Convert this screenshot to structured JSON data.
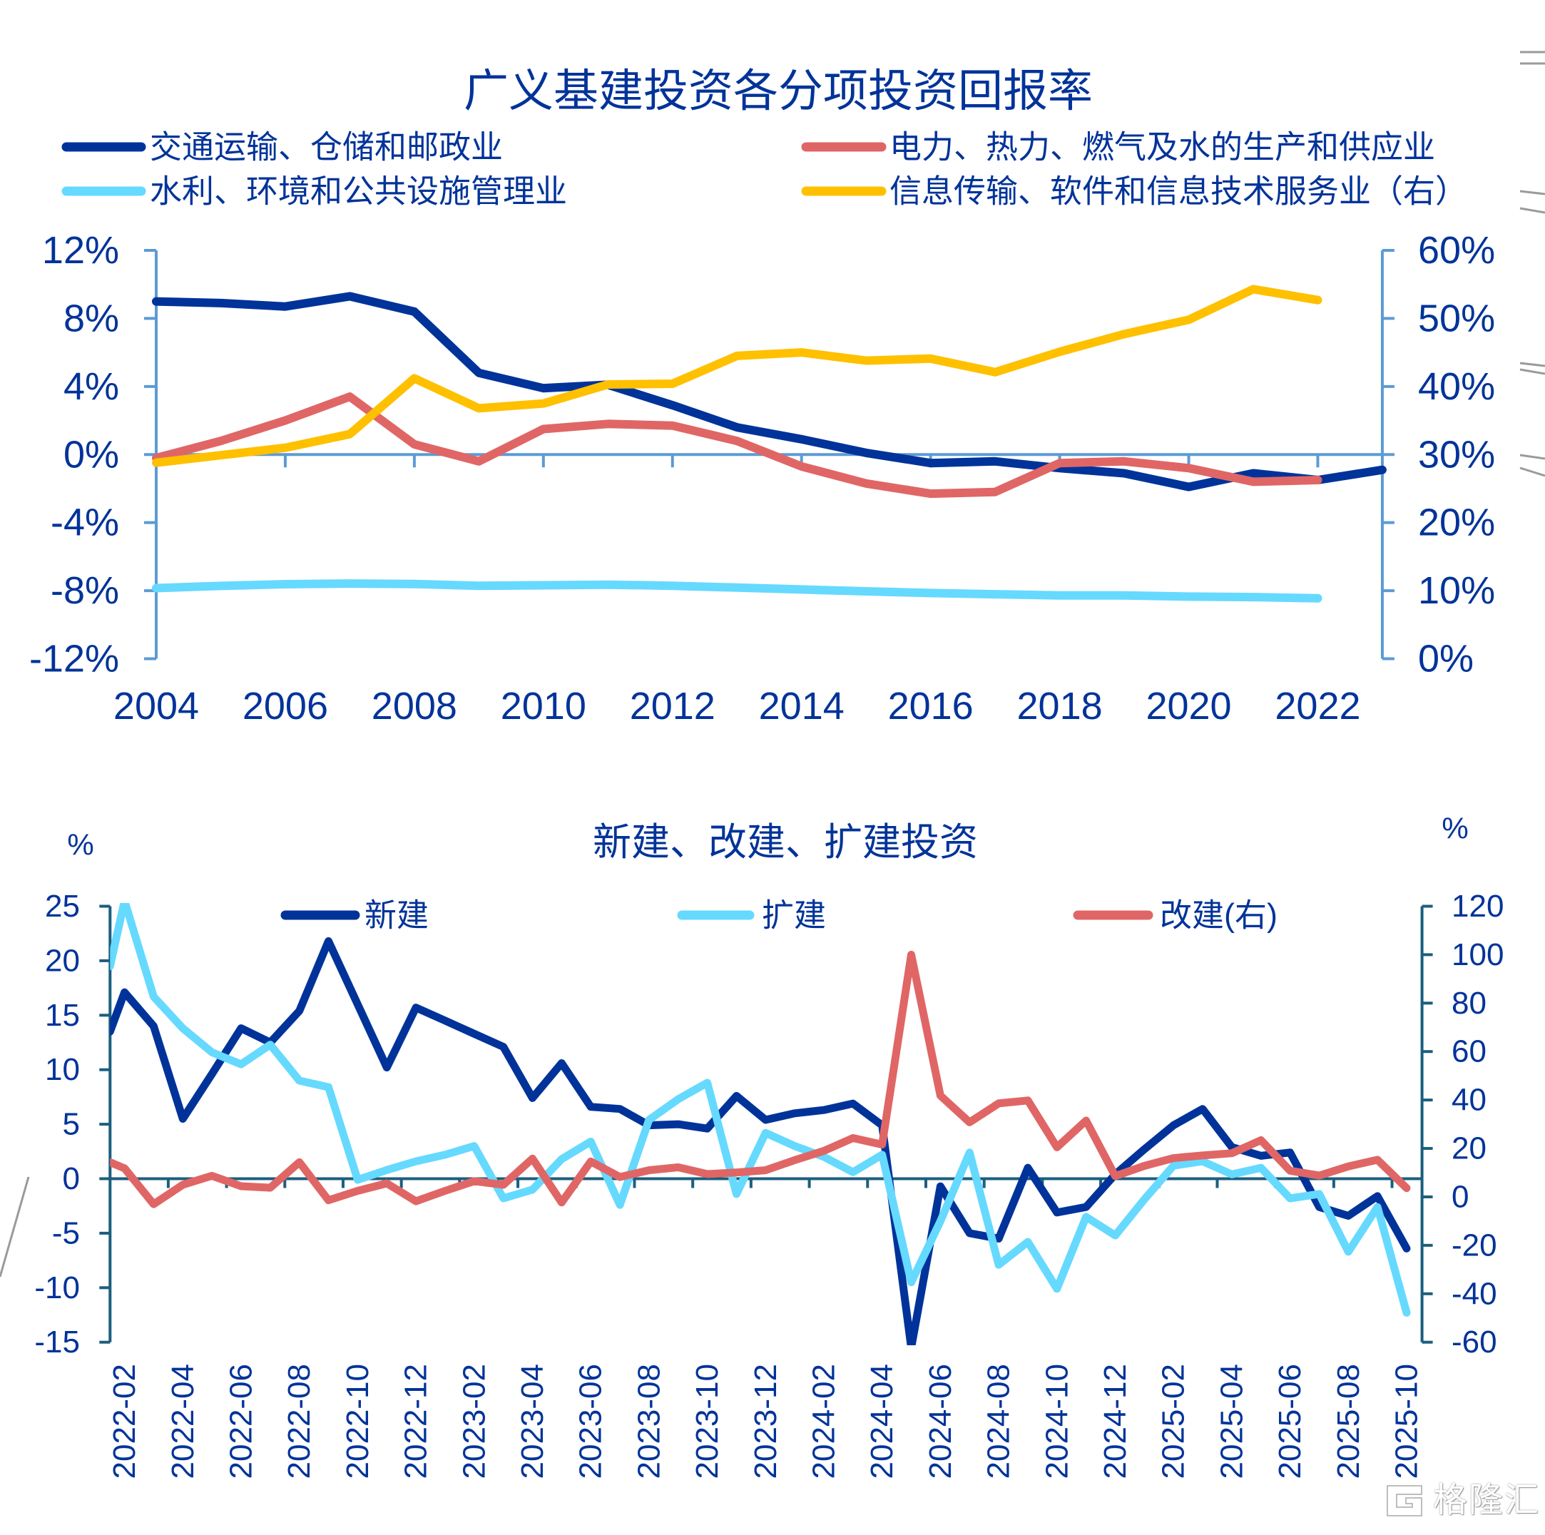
{
  "figure": {
    "background": "#FFFFFF"
  },
  "colors": {
    "text": "#003399",
    "top_axis": "#5B9BD5",
    "bottom_axis": "#1B5E7E",
    "edge_artifact": "#9A9A9A"
  },
  "chart_data": [
    {
      "type": "line",
      "title": "广义基建投资各分项投资回报率",
      "xlabel": "",
      "ylabel": "",
      "grid": false,
      "legend_position": "top",
      "x": [
        2004,
        2005,
        2006,
        2007,
        2008,
        2009,
        2010,
        2011,
        2012,
        2013,
        2014,
        2015,
        2016,
        2017,
        2018,
        2019,
        2020,
        2021,
        2022,
        2023
      ],
      "x_tick_labels": [
        "2004",
        "2006",
        "2008",
        "2010",
        "2012",
        "2014",
        "2016",
        "2018",
        "2020",
        "2022"
      ],
      "y_left": {
        "min": -12,
        "max": 12,
        "ticks": [
          12,
          8,
          4,
          0,
          -4,
          -8,
          -12
        ],
        "tick_labels": [
          "12%",
          "8%",
          "4%",
          "0%",
          "-4%",
          "-8%",
          "-12%"
        ]
      },
      "y_right": {
        "min": 0,
        "max": 60,
        "ticks": [
          60,
          50,
          40,
          30,
          20,
          10,
          0
        ],
        "tick_labels": [
          "60%",
          "50%",
          "40%",
          "30%",
          "20%",
          "10%",
          "0%"
        ]
      },
      "series": [
        {
          "name": "交通运输、仓储和邮政业",
          "axis": "left",
          "color": "#003399",
          "values": [
            9.0,
            8.9,
            8.7,
            9.3,
            8.4,
            4.8,
            3.9,
            4.1,
            2.9,
            1.6,
            0.9,
            0.1,
            -0.5,
            -0.4,
            -0.8,
            -1.1,
            -1.9,
            -1.1,
            -1.5,
            -0.9
          ]
        },
        {
          "name": "电力、热力、燃气及水的生产和供应业",
          "axis": "left",
          "color": "#E06666",
          "values": [
            -0.2,
            0.8,
            2.0,
            3.4,
            0.6,
            -0.4,
            1.5,
            1.8,
            1.7,
            0.8,
            -0.7,
            -1.7,
            -2.3,
            -2.2,
            -0.5,
            -0.4,
            -0.8,
            -1.6,
            -1.5,
            null
          ]
        },
        {
          "name": "水利、环境和公共设施管理业",
          "axis": "left",
          "color": "#66D9FF",
          "values": [
            -7.85,
            -7.72,
            -7.62,
            -7.58,
            -7.61,
            -7.71,
            -7.68,
            -7.65,
            -7.71,
            -7.82,
            -7.93,
            -8.04,
            -8.14,
            -8.21,
            -8.28,
            -8.28,
            -8.35,
            -8.38,
            -8.45,
            null
          ]
        },
        {
          "name": "信息传输、软件和信息技术服务业（右）",
          "axis": "right",
          "color": "#FFC000",
          "values": [
            28.8,
            29.9,
            31.0,
            33.0,
            41.2,
            36.8,
            37.5,
            40.3,
            40.4,
            44.5,
            45.0,
            43.8,
            44.1,
            42.1,
            45.1,
            47.7,
            49.8,
            54.3,
            52.7,
            null
          ]
        }
      ]
    },
    {
      "type": "line",
      "title": "新建、改建、扩建投资",
      "xlabel": "",
      "ylabel": "",
      "grid": false,
      "legend_position": "top",
      "categories": [
        "2022-02",
        "2022-03",
        "2022-04",
        "2022-05",
        "2022-06",
        "2022-07",
        "2022-08",
        "2022-09",
        "2022-10",
        "2022-11",
        "2022-12",
        "2023-01",
        "2023-02",
        "2023-03",
        "2023-04",
        "2023-05",
        "2023-06",
        "2023-07",
        "2023-08",
        "2023-09",
        "2023-10",
        "2023-11",
        "2023-12",
        "2024-01",
        "2024-02",
        "2024-03",
        "2024-04",
        "2024-05",
        "2024-06",
        "2024-07",
        "2024-08",
        "2024-09",
        "2024-10",
        "2024-11",
        "2024-12",
        "2025-01",
        "2025-02",
        "2025-03",
        "2025-04",
        "2025-05",
        "2025-06",
        "2025-07",
        "2025-08",
        "2025-09",
        "2025-10"
      ],
      "x_tick_labels": [
        "2022-02",
        "2022-04",
        "2022-06",
        "2022-08",
        "2022-10",
        "2022-12",
        "2023-02",
        "2023-04",
        "2023-06",
        "2023-08",
        "2023-10",
        "2023-12",
        "2024-02",
        "2024-04",
        "2024-06",
        "2024-08",
        "2024-10",
        "2024-12",
        "2025-02",
        "2025-04",
        "2025-06",
        "2025-08",
        "2025-10"
      ],
      "y_left": {
        "unit": "%",
        "min": -15,
        "max": 25,
        "ticks": [
          25,
          20,
          15,
          10,
          5,
          0,
          -5,
          -10,
          -15
        ],
        "tick_labels": [
          "25",
          "20",
          "15",
          "10",
          "5",
          "0",
          "-5",
          "-10",
          "-15"
        ]
      },
      "y_right": {
        "unit": "%",
        "min": -60,
        "max": 120,
        "ticks": [
          120,
          100,
          80,
          60,
          40,
          20,
          0,
          -20,
          -40,
          -60
        ],
        "tick_labels": [
          "120",
          "100",
          "80",
          "60",
          "40",
          "20",
          "0",
          "-20",
          "-40",
          "-60"
        ]
      },
      "series": [
        {
          "name": "新建",
          "axis": "left",
          "color": "#003399",
          "left_edge_value": 13.5,
          "values": [
            17.1,
            14.0,
            5.5,
            9.6,
            13.8,
            12.5,
            15.4,
            21.8,
            16.0,
            10.2,
            15.7,
            14.5,
            13.3,
            12.1,
            7.4,
            10.6,
            6.6,
            6.4,
            4.9,
            5.0,
            4.6,
            7.6,
            5.4,
            6.0,
            6.3,
            6.9,
            4.9,
            -15.5,
            -0.7,
            -5.0,
            -5.5,
            1.0,
            -3.1,
            -2.6,
            0.4,
            2.7,
            4.9,
            6.4,
            2.9,
            2.1,
            2.4,
            -2.6,
            -3.4,
            -1.6,
            -6.4
          ]
        },
        {
          "name": "扩建",
          "axis": "left",
          "color": "#66D9FF",
          "left_edge_value": 19.5,
          "values": [
            25.5,
            16.7,
            13.8,
            11.6,
            10.5,
            12.3,
            9.0,
            8.4,
            -0.1,
            0.8,
            1.6,
            2.2,
            3.0,
            -1.8,
            -1.0,
            1.8,
            3.4,
            -2.4,
            5.4,
            7.3,
            8.8,
            -1.4,
            4.2,
            3.0,
            2.0,
            0.6,
            2.2,
            -9.5,
            -3.9,
            2.4,
            -7.9,
            -5.8,
            -10.1,
            -3.5,
            -5.2,
            -1.9,
            1.2,
            1.6,
            0.4,
            1.0,
            -1.8,
            -1.4,
            -6.7,
            -2.6,
            -12.3
          ]
        },
        {
          "name": "改建(右)",
          "axis": "right",
          "color": "#E06666",
          "left_edge_value": 14.3,
          "values": [
            11.8,
            -3.0,
            5.0,
            8.7,
            4.4,
            3.8,
            14.3,
            -1.4,
            2.5,
            5.6,
            -1.8,
            2.5,
            6.5,
            5.0,
            15.8,
            -2.3,
            14.6,
            8.2,
            11.0,
            12.2,
            9.4,
            10.1,
            11.0,
            15.2,
            19.0,
            24.3,
            21.6,
            100.0,
            41.8,
            30.8,
            38.6,
            39.8,
            20.5,
            31.5,
            8.6,
            12.8,
            16.0,
            17.1,
            18.0,
            23.4,
            10.8,
            8.8,
            12.6,
            15.3,
            3.6
          ]
        }
      ]
    }
  ],
  "watermark": {
    "text": "格隆汇",
    "icon": "gelonghui-logo"
  }
}
